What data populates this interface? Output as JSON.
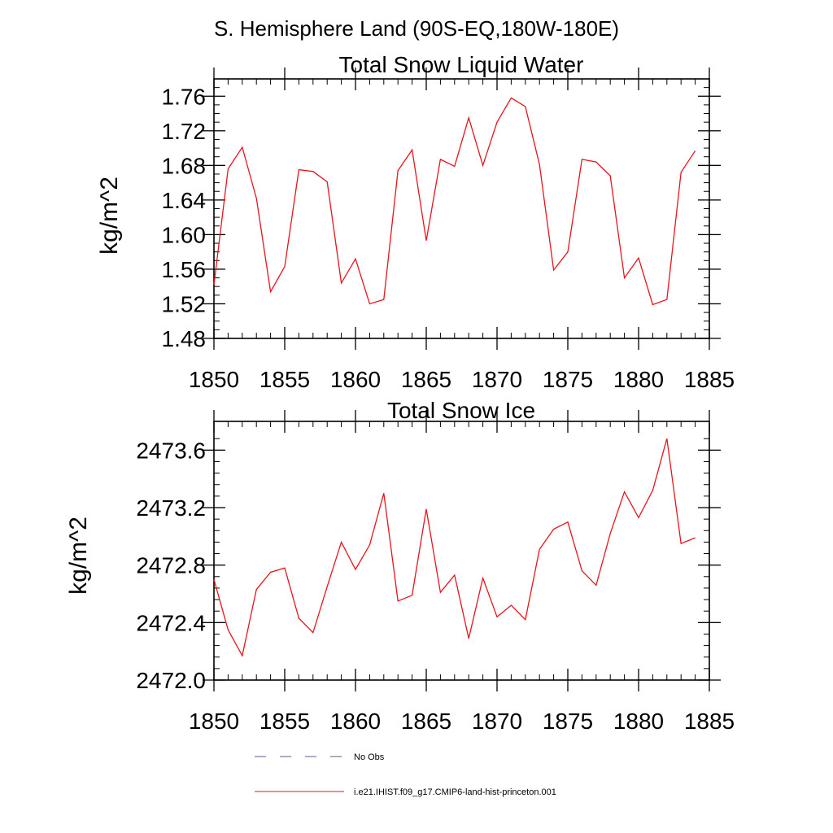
{
  "figure": {
    "title": "S. Hemisphere Land (90S-EQ,180W-180E)"
  },
  "chart_data": [
    {
      "type": "line",
      "title": "Total Snow Liquid Water",
      "xlabel": "",
      "ylabel": "kg/m^2",
      "xlim": [
        1850,
        1885
      ],
      "ylim": [
        1.48,
        1.78
      ],
      "xticks": [
        1850,
        1855,
        1860,
        1865,
        1870,
        1875,
        1880,
        1885
      ],
      "xtick_labels": [
        "1850",
        "1855",
        "1860",
        "1865",
        "1870",
        "1875",
        "1880",
        "1885"
      ],
      "yticks": [
        1.48,
        1.52,
        1.56,
        1.6,
        1.64,
        1.68,
        1.72,
        1.76
      ],
      "ytick_labels": [
        "1.48",
        "1.52",
        "1.56",
        "1.60",
        "1.64",
        "1.68",
        "1.72",
        "1.76"
      ],
      "grid": false,
      "series": [
        {
          "color": "#e8141b",
          "x": [
            1850,
            1851,
            1852,
            1853,
            1854,
            1855,
            1856,
            1857,
            1858,
            1859,
            1860,
            1861,
            1862,
            1863,
            1864,
            1865,
            1866,
            1867,
            1868,
            1869,
            1870,
            1871,
            1872,
            1873,
            1874,
            1875,
            1876,
            1877,
            1878,
            1879,
            1880,
            1881,
            1882,
            1883,
            1884
          ],
          "y": [
            1.542,
            1.676,
            1.701,
            1.642,
            1.534,
            1.563,
            1.675,
            1.673,
            1.661,
            1.544,
            1.572,
            1.52,
            1.525,
            1.674,
            1.698,
            1.593,
            1.687,
            1.679,
            1.735,
            1.68,
            1.73,
            1.758,
            1.748,
            1.681,
            1.559,
            1.58,
            1.687,
            1.684,
            1.668,
            1.55,
            1.573,
            1.519,
            1.525,
            1.672,
            1.697
          ]
        }
      ]
    },
    {
      "type": "line",
      "title": "Total Snow Ice",
      "xlabel": "",
      "ylabel": "kg/m^2",
      "xlim": [
        1850,
        1885
      ],
      "ylim": [
        2472.0,
        2473.8
      ],
      "xticks": [
        1850,
        1855,
        1860,
        1865,
        1870,
        1875,
        1880,
        1885
      ],
      "xtick_labels": [
        "1850",
        "1855",
        "1860",
        "1865",
        "1870",
        "1875",
        "1880",
        "1885"
      ],
      "yticks": [
        2472.0,
        2472.4,
        2472.8,
        2473.2,
        2473.6
      ],
      "ytick_labels": [
        "2472.0",
        "2472.4",
        "2472.8",
        "2473.2",
        "2473.6"
      ],
      "grid": false,
      "series": [
        {
          "color": "#e8141b",
          "x": [
            1850,
            1851,
            1852,
            1853,
            1854,
            1855,
            1856,
            1857,
            1858,
            1859,
            1860,
            1861,
            1862,
            1863,
            1864,
            1865,
            1866,
            1867,
            1868,
            1869,
            1870,
            1871,
            1872,
            1873,
            1874,
            1875,
            1876,
            1877,
            1878,
            1879,
            1880,
            1881,
            1882,
            1883,
            1884
          ],
          "y": [
            2472.7,
            2472.35,
            2472.17,
            2472.63,
            2472.75,
            2472.78,
            2472.43,
            2472.33,
            2472.65,
            2472.96,
            2472.77,
            2472.94,
            2473.3,
            2472.55,
            2472.59,
            2473.19,
            2472.61,
            2472.73,
            2472.29,
            2472.71,
            2472.44,
            2472.52,
            2472.42,
            2472.91,
            2473.05,
            2473.1,
            2472.76,
            2472.66,
            2473.02,
            2473.31,
            2473.13,
            2473.32,
            2473.68,
            2472.95,
            2472.99
          ]
        }
      ]
    }
  ],
  "legend": {
    "placement": "bottom-center",
    "entries": [
      {
        "label": "No Obs",
        "color": "#5a5a8a",
        "style": "dashed"
      },
      {
        "label": "i.e21.IHIST.f09_g17.CMIP6-land-hist-princeton.001",
        "color": "#e8141b",
        "style": "solid"
      }
    ]
  }
}
